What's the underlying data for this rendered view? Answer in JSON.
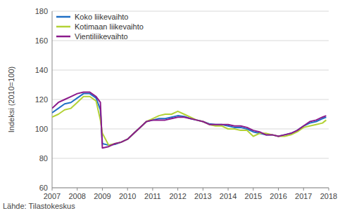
{
  "chart_data": {
    "type": "line",
    "y_label": "Indeksi (2010=100)",
    "source": "Lähde: Tilastokeskus",
    "x": [
      2007,
      2007.25,
      2007.5,
      2007.75,
      2008,
      2008.25,
      2008.5,
      2008.75,
      2008.92,
      2009,
      2009.25,
      2009.5,
      2009.75,
      2010,
      2010.25,
      2010.5,
      2010.75,
      2011,
      2011.25,
      2011.5,
      2011.75,
      2012,
      2012.25,
      2012.5,
      2012.75,
      2013,
      2013.25,
      2013.5,
      2013.75,
      2014,
      2014.25,
      2014.5,
      2014.75,
      2015,
      2015.25,
      2015.5,
      2015.75,
      2016,
      2016.25,
      2016.5,
      2016.75,
      2017,
      2017.25,
      2017.5,
      2017.75,
      2017.9
    ],
    "series": [
      {
        "name": "Koko liikevaihto",
        "color": "#1f6fc5",
        "values": [
          111,
          114,
          117,
          118,
          121,
          124,
          124,
          121,
          113,
          90,
          89,
          89.5,
          91,
          93,
          97,
          101,
          105,
          106,
          107,
          107,
          108,
          109,
          108.5,
          107,
          106,
          105,
          103.5,
          103,
          103,
          102,
          101,
          101,
          100,
          98,
          97,
          96,
          96,
          95,
          96,
          97,
          99,
          102,
          104,
          105,
          107,
          108
        ]
      },
      {
        "name": "Kotimaan liikevaihto",
        "color": "#b3d235",
        "values": [
          108,
          110,
          113,
          114,
          118,
          122,
          122,
          119,
          106,
          97,
          89,
          90,
          91,
          93,
          97,
          101,
          105,
          107,
          109,
          110,
          110,
          112,
          110,
          108,
          106,
          105,
          103,
          102,
          102,
          100,
          100,
          99,
          99,
          95,
          97,
          97,
          96,
          95,
          95,
          96,
          98,
          101,
          102,
          103,
          104,
          106
        ]
      },
      {
        "name": "Vientiliikevaihto",
        "color": "#8b1a8b",
        "values": [
          114,
          118,
          120,
          122,
          124,
          125,
          125,
          122,
          118,
          87,
          88,
          90,
          91,
          93,
          97,
          101,
          105,
          106,
          106,
          106,
          107,
          108,
          108,
          107,
          106,
          105,
          103,
          103,
          103,
          103,
          102,
          102,
          101,
          99,
          98,
          96,
          96,
          95,
          96,
          97,
          99,
          102,
          105,
          106,
          108,
          109
        ]
      }
    ],
    "xlim": [
      2007,
      2018
    ],
    "xticks": [
      2007,
      2008,
      2009,
      2010,
      2011,
      2012,
      2013,
      2014,
      2015,
      2016,
      2017,
      2018
    ],
    "ylim": [
      60,
      180
    ],
    "yticks": [
      60,
      80,
      100,
      120,
      140,
      160,
      180
    ],
    "grid": true,
    "legend": "top-left"
  }
}
